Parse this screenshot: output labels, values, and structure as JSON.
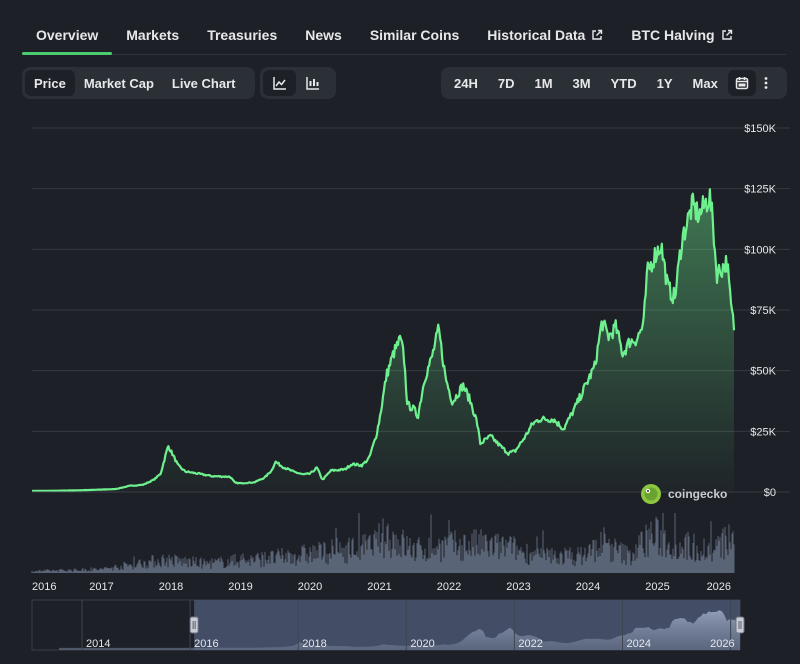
{
  "tabs": [
    {
      "label": "Overview",
      "active": true,
      "external": false
    },
    {
      "label": "Markets",
      "active": false,
      "external": false
    },
    {
      "label": "Treasuries",
      "active": false,
      "external": false
    },
    {
      "label": "News",
      "active": false,
      "external": false
    },
    {
      "label": "Similar Coins",
      "active": false,
      "external": false
    },
    {
      "label": "Historical Data",
      "active": false,
      "external": true
    },
    {
      "label": "BTC Halving",
      "active": false,
      "external": true
    }
  ],
  "metric_buttons": [
    {
      "label": "Price",
      "active": true
    },
    {
      "label": "Market Cap",
      "active": false
    },
    {
      "label": "Live Chart",
      "active": false
    }
  ],
  "chart_type_buttons": [
    {
      "icon": "line-chart-icon",
      "active": true
    },
    {
      "icon": "candlestick-icon",
      "active": false
    }
  ],
  "range_buttons": [
    {
      "label": "24H",
      "active": false
    },
    {
      "label": "7D",
      "active": false
    },
    {
      "label": "1M",
      "active": false
    },
    {
      "label": "3M",
      "active": false
    },
    {
      "label": "YTD",
      "active": false
    },
    {
      "label": "1Y",
      "active": false
    },
    {
      "label": "Max",
      "active": false
    }
  ],
  "range_icons": [
    "calendar-icon",
    "more-vertical-icon"
  ],
  "watermark": "coingecko",
  "colors": {
    "background": "#1d2026",
    "line": "#6ff08f",
    "accent": "#4bcc70",
    "volume": "#5a6477",
    "navigator_selection": "#4a5671"
  },
  "chart_data": {
    "type": "area",
    "title": "",
    "xlabel": "",
    "ylabel": "",
    "y_tick_labels": [
      "$0",
      "$25K",
      "$50K",
      "$75K",
      "$100K",
      "$125K",
      "$150K"
    ],
    "y_ticks": [
      0,
      25000,
      50000,
      75000,
      100000,
      125000,
      150000
    ],
    "ylim": [
      0,
      150000
    ],
    "x_tick_labels": [
      "2016",
      "2017",
      "2018",
      "2019",
      "2020",
      "2021",
      "2022",
      "2023",
      "2024",
      "2025",
      "2026"
    ],
    "x_ticks": [
      2016,
      2017,
      2018,
      2019,
      2020,
      2021,
      2022,
      2023,
      2024,
      2025,
      2026
    ],
    "xlim": [
      2016.0,
      2026.1
    ],
    "grid": true,
    "series": [
      {
        "values": [
          [
            2016.0,
            430
          ],
          [
            2016.4,
            550
          ],
          [
            2016.6,
            650
          ],
          [
            2016.9,
            900
          ],
          [
            2017.2,
            1200
          ],
          [
            2017.4,
            2500
          ],
          [
            2017.6,
            3000
          ],
          [
            2017.75,
            5000
          ],
          [
            2017.85,
            7500
          ],
          [
            2017.92,
            15000
          ],
          [
            2017.96,
            19000
          ],
          [
            2018.05,
            14000
          ],
          [
            2018.1,
            11000
          ],
          [
            2018.2,
            8500
          ],
          [
            2018.4,
            7500
          ],
          [
            2018.6,
            6500
          ],
          [
            2018.85,
            6300
          ],
          [
            2018.92,
            3800
          ],
          [
            2019.0,
            3600
          ],
          [
            2019.2,
            4000
          ],
          [
            2019.35,
            6000
          ],
          [
            2019.45,
            9000
          ],
          [
            2019.5,
            12500
          ],
          [
            2019.6,
            10500
          ],
          [
            2019.75,
            8500
          ],
          [
            2019.9,
            7200
          ],
          [
            2020.0,
            7500
          ],
          [
            2020.1,
            10000
          ],
          [
            2020.18,
            5000
          ],
          [
            2020.3,
            8800
          ],
          [
            2020.5,
            9300
          ],
          [
            2020.6,
            11500
          ],
          [
            2020.75,
            11000
          ],
          [
            2020.85,
            14000
          ],
          [
            2020.95,
            23000
          ],
          [
            2021.0,
            30000
          ],
          [
            2021.1,
            48000
          ],
          [
            2021.2,
            57000
          ],
          [
            2021.3,
            63000
          ],
          [
            2021.35,
            56000
          ],
          [
            2021.4,
            36000
          ],
          [
            2021.5,
            34000
          ],
          [
            2021.55,
            31000
          ],
          [
            2021.65,
            47000
          ],
          [
            2021.75,
            55000
          ],
          [
            2021.85,
            67000
          ],
          [
            2021.95,
            47000
          ],
          [
            2022.05,
            37000
          ],
          [
            2022.2,
            44000
          ],
          [
            2022.3,
            38000
          ],
          [
            2022.4,
            29000
          ],
          [
            2022.45,
            20000
          ],
          [
            2022.6,
            23000
          ],
          [
            2022.7,
            20000
          ],
          [
            2022.85,
            16000
          ],
          [
            2022.95,
            16800
          ],
          [
            2023.1,
            23000
          ],
          [
            2023.2,
            28000
          ],
          [
            2023.3,
            30000
          ],
          [
            2023.5,
            30000
          ],
          [
            2023.65,
            26000
          ],
          [
            2023.8,
            34000
          ],
          [
            2023.95,
            43000
          ],
          [
            2024.1,
            52000
          ],
          [
            2024.2,
            70000
          ],
          [
            2024.3,
            64000
          ],
          [
            2024.4,
            68000
          ],
          [
            2024.5,
            57000
          ],
          [
            2024.6,
            62000
          ],
          [
            2024.7,
            63000
          ],
          [
            2024.8,
            69000
          ],
          [
            2024.85,
            90000
          ],
          [
            2024.95,
            97000
          ],
          [
            2025.05,
            102000
          ],
          [
            2025.15,
            84000
          ],
          [
            2025.25,
            80000
          ],
          [
            2025.35,
            104000
          ],
          [
            2025.5,
            118000
          ],
          [
            2025.6,
            114000
          ],
          [
            2025.75,
            122000
          ],
          [
            2025.8,
            110000
          ],
          [
            2025.85,
            90000
          ],
          [
            2025.92,
            92000
          ],
          [
            2026.0,
            95000
          ],
          [
            2026.05,
            78000
          ],
          [
            2026.1,
            68000
          ]
        ]
      }
    ],
    "volume": {
      "values": [
        [
          2016.0,
          0.05
        ],
        [
          2017.0,
          0.1
        ],
        [
          2017.9,
          0.35
        ],
        [
          2018.5,
          0.25
        ],
        [
          2019.5,
          0.4
        ],
        [
          2020.2,
          0.55
        ],
        [
          2020.9,
          0.7
        ],
        [
          2021.1,
          1.0
        ],
        [
          2021.5,
          0.6
        ],
        [
          2021.9,
          0.7
        ],
        [
          2022.4,
          0.75
        ],
        [
          2022.9,
          0.65
        ],
        [
          2023.3,
          0.45
        ],
        [
          2023.9,
          0.45
        ],
        [
          2024.2,
          0.75
        ],
        [
          2024.6,
          0.45
        ],
        [
          2024.9,
          1.0
        ],
        [
          2025.3,
          0.75
        ],
        [
          2025.8,
          0.6
        ],
        [
          2026.05,
          0.9
        ]
      ]
    },
    "navigator": {
      "x_tick_labels": [
        "2014",
        "2016",
        "2018",
        "2020",
        "2022",
        "2024",
        "2026"
      ],
      "x_ticks": [
        2014,
        2016,
        2018,
        2020,
        2022,
        2024,
        2026
      ],
      "xlim": [
        2013.0,
        2026.1
      ],
      "selection": [
        2016.0,
        2026.1
      ]
    }
  }
}
